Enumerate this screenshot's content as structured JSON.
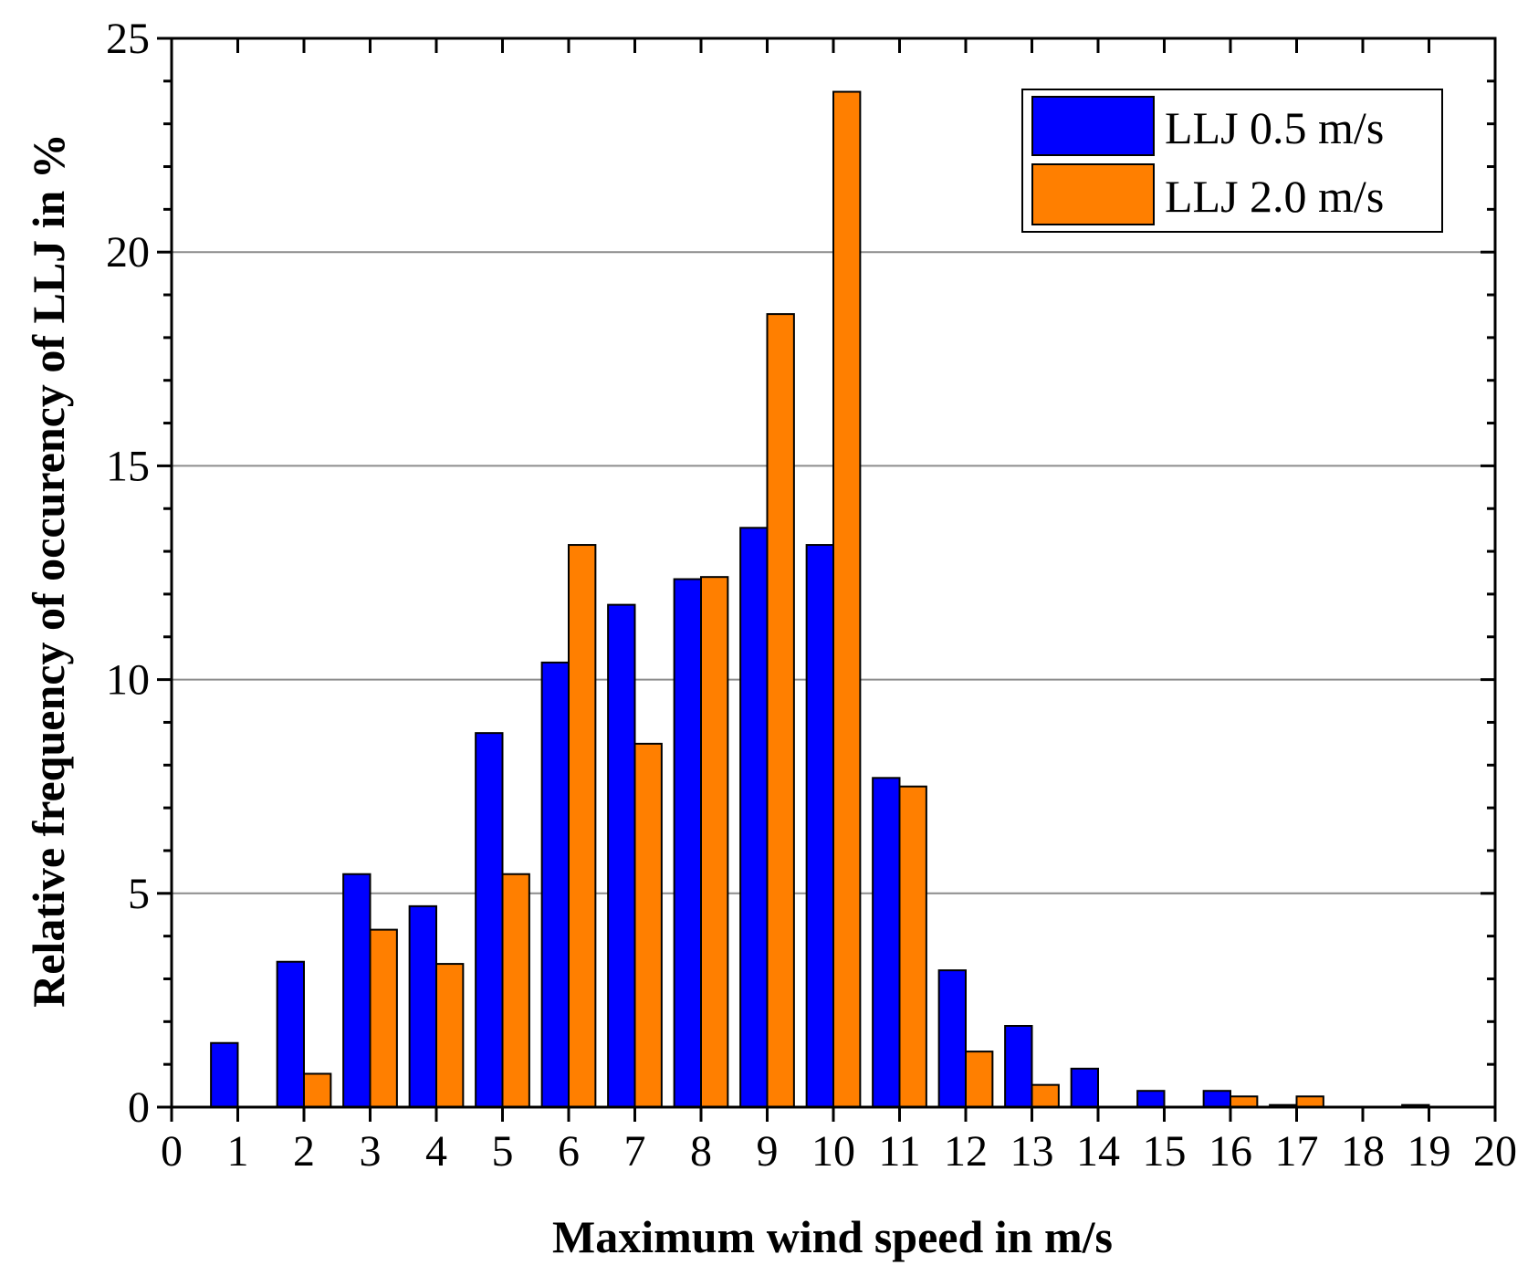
{
  "chart_data": {
    "type": "bar",
    "title": "",
    "xlabel": "Maximum wind speed in m/s",
    "ylabel": "Relative frequency of occurency of LLJ in %",
    "xlim": [
      0,
      20
    ],
    "ylim": [
      0,
      25
    ],
    "x_ticks": [
      "0",
      "1",
      "2",
      "3",
      "4",
      "5",
      "6",
      "7",
      "8",
      "9",
      "10",
      "11",
      "12",
      "13",
      "14",
      "15",
      "16",
      "17",
      "18",
      "19",
      "20"
    ],
    "y_ticks": [
      "0",
      "5",
      "10",
      "15",
      "20",
      "25"
    ],
    "grid": "horizontal at major y ticks",
    "legend_position": "top-right",
    "categories": [
      1,
      2,
      3,
      4,
      5,
      6,
      7,
      8,
      9,
      10,
      11,
      12,
      13,
      14,
      15,
      16,
      17,
      18,
      19
    ],
    "series": [
      {
        "name": "LLJ 0.5 m/s",
        "color": "#0000ff",
        "values": [
          1.5,
          3.4,
          5.45,
          4.7,
          8.75,
          10.4,
          11.75,
          12.35,
          13.55,
          13.15,
          7.7,
          3.2,
          1.9,
          0.9,
          0.38,
          0.38,
          0.05,
          0.0,
          0.05
        ]
      },
      {
        "name": "LLJ 2.0 m/s",
        "color": "#ff7f00",
        "values": [
          0.0,
          0.78,
          4.15,
          3.35,
          5.45,
          13.15,
          8.5,
          12.4,
          18.55,
          23.75,
          7.5,
          1.3,
          0.52,
          0.0,
          0.0,
          0.25,
          0.25,
          0.0,
          0.0
        ]
      }
    ]
  }
}
